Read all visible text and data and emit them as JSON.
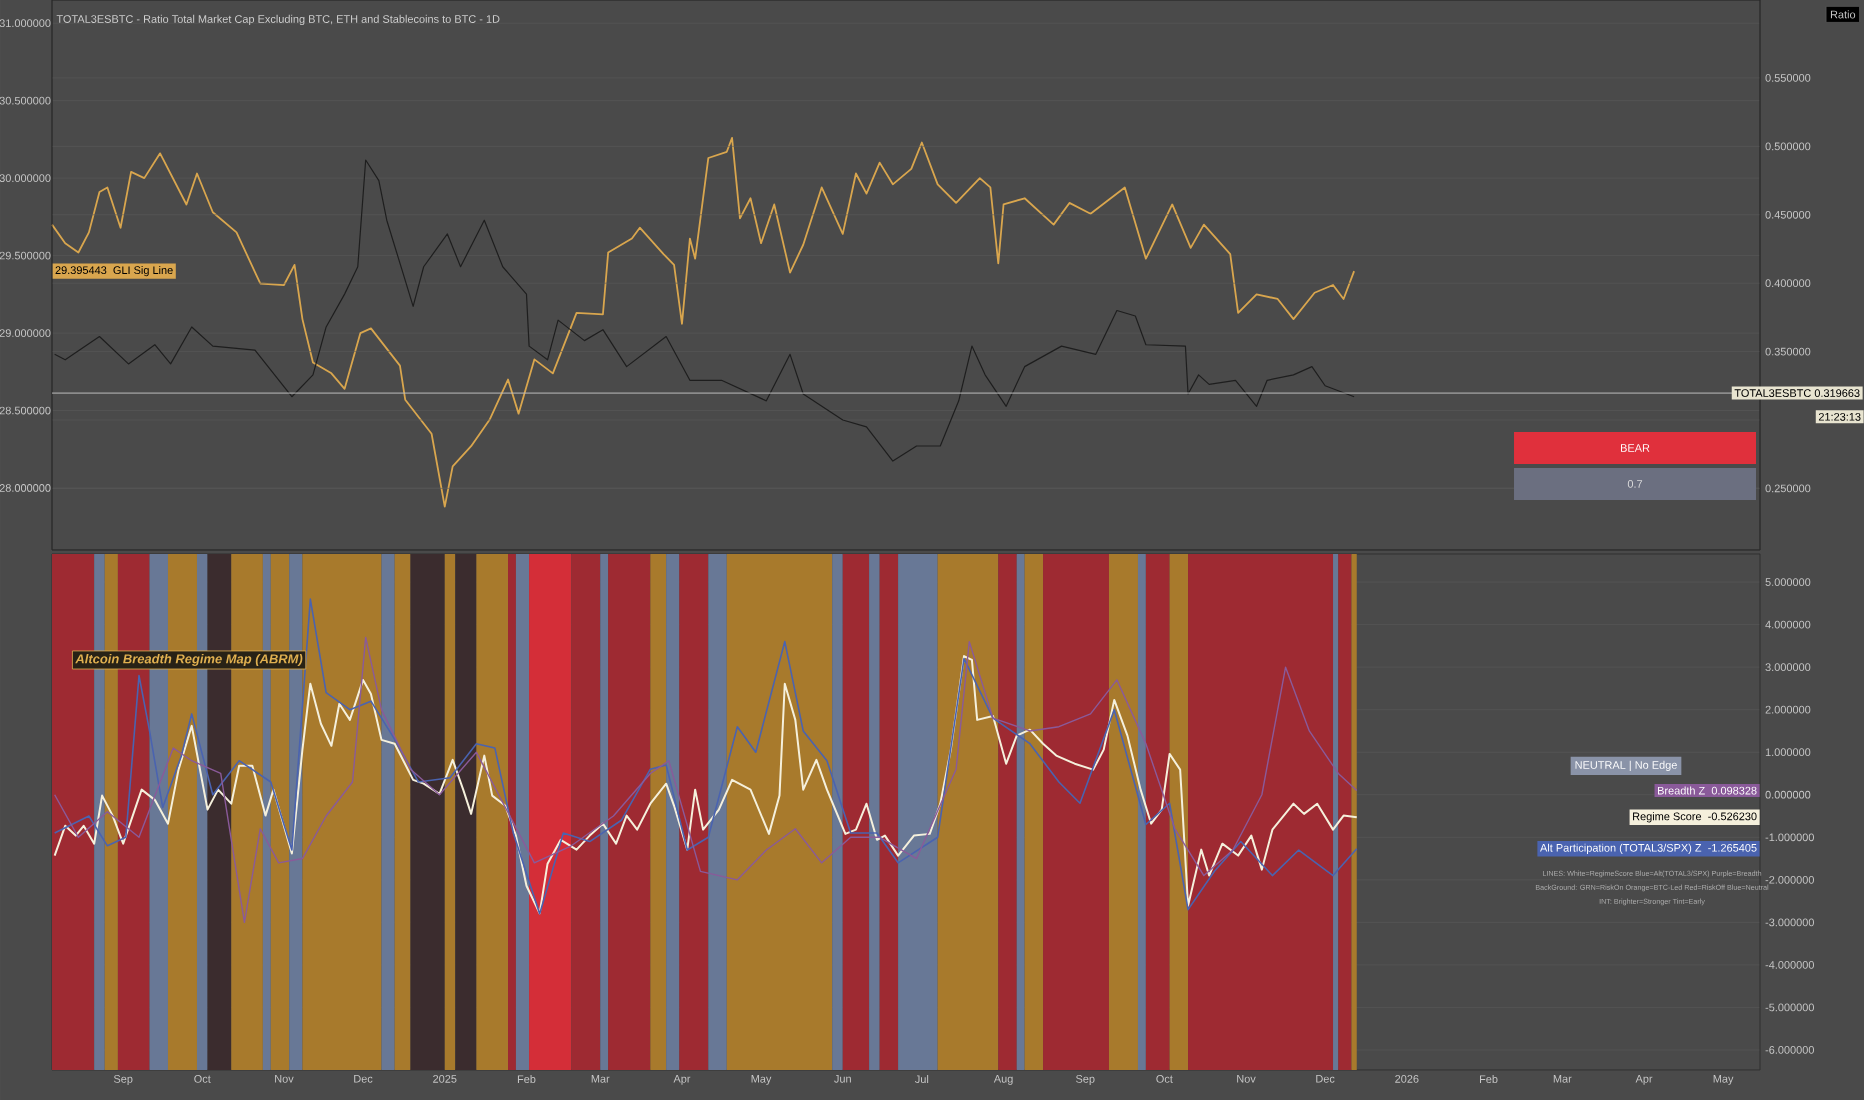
{
  "chart_data": [
    {
      "type": "line",
      "title": "TOTAL3ESBTC - Ratio Total Market Cap Excluding BTC, ETH and Stablecoins to BTC - 1D",
      "y2label": "Ratio",
      "xlim": [
        "2024-08-05",
        "2026-05-15"
      ],
      "ylim": [
        27.6,
        31.15
      ],
      "yticks": [
        {
          "value": 28,
          "label": "28.000000"
        },
        {
          "value": 28.5,
          "label": "28.500000"
        },
        {
          "value": 29,
          "label": "29.000000"
        },
        {
          "value": 29.5,
          "label": "29.500000"
        },
        {
          "value": 30,
          "label": "30.000000"
        },
        {
          "value": 30.5,
          "label": "30.500000"
        },
        {
          "value": 31,
          "label": "31.000000"
        }
      ],
      "y2lim": [
        0.205,
        0.607
      ],
      "y2ticks": [
        {
          "value": 0.25,
          "label": "0.250000"
        },
        {
          "value": 0.3,
          "label": null
        },
        {
          "value": 0.35,
          "label": "0.350000"
        },
        {
          "value": 0.4,
          "label": "0.400000"
        },
        {
          "value": 0.45,
          "label": "0.450000"
        },
        {
          "value": 0.5,
          "label": "0.500000"
        },
        {
          "value": 0.55,
          "label": "0.550000"
        }
      ],
      "tick_labels": "y",
      "grid": "y",
      "series": [
        {
          "name": "GLI Sig Line",
          "color": "#d9a64e",
          "x": [
            "2024-08-05",
            "2024-08-10",
            "2024-08-15",
            "2024-08-19",
            "2024-08-23",
            "2024-08-26",
            "2024-08-31",
            "2024-09-04",
            "2024-09-09",
            "2024-09-15",
            "2024-09-25",
            "2024-09-29",
            "2024-10-05",
            "2024-10-14",
            "2024-10-23",
            "2024-11-01",
            "2024-11-05",
            "2024-11-08",
            "2024-11-12",
            "2024-11-19",
            "2024-11-24",
            "2024-11-30",
            "2024-12-04",
            "2024-12-15",
            "2024-12-17",
            "2024-12-27",
            "2025-01-01",
            "2025-01-04",
            "2025-01-11",
            "2025-01-18",
            "2025-01-25",
            "2025-01-29",
            "2025-02-04",
            "2025-02-11",
            "2025-02-20",
            "2025-03-02",
            "2025-03-04",
            "2025-03-13",
            "2025-03-16",
            "2025-03-25",
            "2025-03-29",
            "2025-04-01",
            "2025-04-04",
            "2025-04-06",
            "2025-04-11",
            "2025-04-18",
            "2025-04-20",
            "2025-04-23",
            "2025-04-27",
            "2025-05-01",
            "2025-05-06",
            "2025-05-12",
            "2025-05-17",
            "2025-05-24",
            "2025-06-01",
            "2025-06-06",
            "2025-06-10",
            "2025-06-15",
            "2025-06-20",
            "2025-06-27",
            "2025-07-01",
            "2025-07-07",
            "2025-07-14",
            "2025-07-23",
            "2025-07-27",
            "2025-07-30",
            "2025-08-01",
            "2025-08-09",
            "2025-08-20",
            "2025-08-26",
            "2025-09-03",
            "2025-09-16",
            "2025-09-24",
            "2025-10-04",
            "2025-10-11",
            "2025-10-16",
            "2025-10-26",
            "2025-10-29",
            "2025-11-05",
            "2025-11-13",
            "2025-11-19",
            "2025-11-27",
            "2025-12-04",
            "2025-12-08",
            "2025-12-12"
          ],
          "values": [
            29.7,
            29.58,
            29.52,
            29.65,
            29.91,
            29.94,
            29.68,
            30.04,
            30.0,
            30.16,
            29.83,
            30.03,
            29.78,
            29.65,
            29.32,
            29.31,
            29.44,
            29.09,
            28.81,
            28.74,
            28.64,
            29.0,
            29.03,
            28.79,
            28.57,
            28.35,
            27.88,
            28.14,
            28.27,
            28.44,
            28.7,
            28.48,
            28.83,
            28.74,
            29.13,
            29.12,
            29.52,
            29.61,
            29.68,
            29.51,
            29.44,
            29.06,
            29.61,
            29.48,
            30.13,
            30.17,
            30.26,
            29.74,
            29.87,
            29.58,
            29.83,
            29.39,
            29.57,
            29.94,
            29.64,
            30.03,
            29.9,
            30.1,
            29.96,
            30.06,
            30.23,
            29.96,
            29.84,
            30.0,
            29.94,
            29.45,
            29.83,
            29.87,
            29.7,
            29.84,
            29.77,
            29.94,
            29.48,
            29.83,
            29.55,
            29.7,
            29.51,
            29.13,
            29.25,
            29.22,
            29.09,
            29.26,
            29.31,
            29.22,
            29.4
          ]
        },
        {
          "color": "#1e1e1e",
          "axis": "y2",
          "x": [
            "2024-08-06",
            "2024-08-10",
            "2024-08-23",
            "2024-09-03",
            "2024-09-13",
            "2024-09-19",
            "2024-09-27",
            "2024-10-05",
            "2024-10-21",
            "2024-11-04",
            "2024-11-12",
            "2024-11-17",
            "2024-11-24",
            "2024-11-29",
            "2024-12-02",
            "2024-12-07",
            "2024-12-10",
            "2024-12-17",
            "2024-12-20",
            "2024-12-24",
            "2025-01-02",
            "2025-01-07",
            "2025-01-16",
            "2025-01-23",
            "2025-02-01",
            "2025-02-02",
            "2025-02-09",
            "2025-02-13",
            "2025-02-23",
            "2025-03-02",
            "2025-03-11",
            "2025-03-26",
            "2025-04-04",
            "2025-04-16",
            "2025-05-03",
            "2025-05-12",
            "2025-05-17",
            "2025-06-01",
            "2025-06-10",
            "2025-06-20",
            "2025-06-29",
            "2025-07-08",
            "2025-07-15",
            "2025-07-20",
            "2025-07-25",
            "2025-08-02",
            "2025-08-09",
            "2025-08-23",
            "2025-09-05",
            "2025-09-13",
            "2025-09-20",
            "2025-09-24",
            "2025-10-09",
            "2025-10-10",
            "2025-10-14",
            "2025-10-18",
            "2025-10-28",
            "2025-11-05",
            "2025-11-09",
            "2025-11-19",
            "2025-11-26",
            "2025-12-01",
            "2025-12-12"
          ],
          "values": [
            0.348,
            0.344,
            0.361,
            0.341,
            0.355,
            0.341,
            0.368,
            0.354,
            0.351,
            0.317,
            0.333,
            0.368,
            0.392,
            0.412,
            0.49,
            0.475,
            0.446,
            0.402,
            0.383,
            0.412,
            0.436,
            0.412,
            0.446,
            0.412,
            0.392,
            0.354,
            0.344,
            0.373,
            0.358,
            0.366,
            0.339,
            0.361,
            0.329,
            0.329,
            0.314,
            0.348,
            0.319,
            0.3,
            0.295,
            0.27,
            0.281,
            0.281,
            0.314,
            0.354,
            0.333,
            0.31,
            0.339,
            0.354,
            0.348,
            0.38,
            0.376,
            0.355,
            0.354,
            0.319,
            0.333,
            0.326,
            0.329,
            0.31,
            0.329,
            0.333,
            0.339,
            0.325,
            0.317
          ]
        }
      ],
      "ref_lines": [
        {
          "axis": "y2",
          "value": 0.319663,
          "label": "TOTAL3ESBTC 0.319663",
          "color": "#bdbdbd"
        }
      ],
      "annotations": [
        "29.395443",
        "21:23:13",
        "BEAR",
        "0.7"
      ]
    },
    {
      "type": "line",
      "title": "Altcoin Breadth Regime Map (ABRM)",
      "xlim": [
        "2024-08-05",
        "2026-05-15"
      ],
      "xticks": [
        {
          "value": "2024-09-01",
          "label": "Sep"
        },
        {
          "value": "2024-10-01",
          "label": "Oct"
        },
        {
          "value": "2024-11-01",
          "label": "Nov"
        },
        {
          "value": "2024-12-01",
          "label": "Dec"
        },
        {
          "value": "2025-01-01",
          "label": "2025"
        },
        {
          "value": "2025-02-01",
          "label": "Feb"
        },
        {
          "value": "2025-03-01",
          "label": "Mar"
        },
        {
          "value": "2025-04-01",
          "label": "Apr"
        },
        {
          "value": "2025-05-01",
          "label": "May"
        },
        {
          "value": "2025-06-01",
          "label": "Jun"
        },
        {
          "value": "2025-07-01",
          "label": "Jul"
        },
        {
          "value": "2025-08-01",
          "label": "Aug"
        },
        {
          "value": "2025-09-01",
          "label": "Sep"
        },
        {
          "value": "2025-10-01",
          "label": "Oct"
        },
        {
          "value": "2025-11-01",
          "label": "Nov"
        },
        {
          "value": "2025-12-01",
          "label": "Dec"
        },
        {
          "value": "2026-01-01",
          "label": "2026"
        },
        {
          "value": "2026-02-01",
          "label": "Feb"
        },
        {
          "value": "2026-03-01",
          "label": "Mar"
        },
        {
          "value": "2026-04-01",
          "label": "Apr"
        },
        {
          "value": "2026-05-01",
          "label": "May"
        }
      ],
      "ylim": [
        -6.47,
        5.66
      ],
      "yticks": [
        {
          "value": -6,
          "label": "-6.000000"
        },
        {
          "value": -5,
          "label": "-5.000000"
        },
        {
          "value": -4,
          "label": "-4.000000"
        },
        {
          "value": -3,
          "label": "-3.000000"
        },
        {
          "value": -2,
          "label": "-2.000000"
        },
        {
          "value": -1,
          "label": "-1.000000"
        },
        {
          "value": 0,
          "label": "0.000000"
        },
        {
          "value": 1,
          "label": "1.000000"
        },
        {
          "value": 2,
          "label": "2.000000"
        },
        {
          "value": 3,
          "label": "3.000000"
        },
        {
          "value": 4,
          "label": "4.000000"
        },
        {
          "value": 5,
          "label": "5.000000"
        }
      ],
      "grid": "y",
      "series": [
        {
          "name": "Regime Score",
          "color": "#f5f0dc",
          "x": [
            "2024-08-06",
            "2024-08-10",
            "2024-08-14",
            "2024-08-17",
            "2024-08-21",
            "2024-08-24",
            "2024-08-28",
            "2024-09-01",
            "2024-09-08",
            "2024-09-13",
            "2024-09-18",
            "2024-09-22",
            "2024-09-27",
            "2024-10-03",
            "2024-10-07",
            "2024-10-12",
            "2024-10-15",
            "2024-10-20",
            "2024-10-25",
            "2024-10-28",
            "2024-11-04",
            "2024-11-08",
            "2024-11-11",
            "2024-11-15",
            "2024-11-19",
            "2024-11-22",
            "2024-11-26",
            "2024-12-01",
            "2024-12-04",
            "2024-12-08",
            "2024-12-13",
            "2024-12-20",
            "2024-12-24",
            "2024-12-30",
            "2025-01-04",
            "2025-01-08",
            "2025-01-11",
            "2025-01-16",
            "2025-01-19",
            "2025-01-24",
            "2025-01-28",
            "2025-02-01",
            "2025-02-06",
            "2025-02-09",
            "2025-02-14",
            "2025-02-20",
            "2025-02-25",
            "2025-03-02",
            "2025-03-07",
            "2025-03-11",
            "2025-03-15",
            "2025-03-20",
            "2025-03-26",
            "2025-03-29",
            "2025-04-03",
            "2025-04-06",
            "2025-04-09",
            "2025-04-15",
            "2025-04-20",
            "2025-04-27",
            "2025-05-04",
            "2025-05-08",
            "2025-05-10",
            "2025-05-14",
            "2025-05-17",
            "2025-05-22",
            "2025-05-26",
            "2025-06-02",
            "2025-06-06",
            "2025-06-10",
            "2025-06-14",
            "2025-06-17",
            "2025-06-22",
            "2025-06-28",
            "2025-07-04",
            "2025-07-08",
            "2025-07-12",
            "2025-07-17",
            "2025-07-20",
            "2025-07-22",
            "2025-07-28",
            "2025-08-02",
            "2025-08-06",
            "2025-08-11",
            "2025-08-16",
            "2025-08-21",
            "2025-08-28",
            "2025-09-04",
            "2025-09-08",
            "2025-09-12",
            "2025-09-17",
            "2025-09-22",
            "2025-09-26",
            "2025-09-30",
            "2025-10-03",
            "2025-10-07",
            "2025-10-10",
            "2025-10-15",
            "2025-10-18",
            "2025-10-23",
            "2025-10-29",
            "2025-11-03",
            "2025-11-07",
            "2025-11-11",
            "2025-11-19",
            "2025-11-23",
            "2025-11-28",
            "2025-12-04",
            "2025-12-08",
            "2025-12-13"
          ],
          "values": [
            -1.43,
            -0.73,
            -0.96,
            -0.73,
            -1.15,
            -0.02,
            -0.49,
            -1.15,
            0.12,
            -0.12,
            -0.68,
            0.59,
            1.62,
            -0.35,
            0.12,
            -0.21,
            0.68,
            0.68,
            -0.49,
            0.12,
            -1.38,
            1.06,
            2.61,
            1.67,
            1.15,
            2.14,
            1.76,
            2.7,
            2.37,
            1.29,
            1.2,
            0.35,
            0.26,
            0.02,
            0.82,
            0.12,
            -0.45,
            0.92,
            -0.02,
            -0.26,
            -0.96,
            -2.14,
            -2.79,
            -1.62,
            -1.06,
            -1.29,
            -0.96,
            -0.68,
            -1.15,
            -0.49,
            -0.82,
            -0.21,
            0.26,
            -0.26,
            -1.29,
            0.12,
            -0.82,
            -0.35,
            0.35,
            0.12,
            -0.92,
            -0.02,
            2.61,
            1.76,
            0.12,
            0.82,
            0.12,
            -0.92,
            -0.82,
            -0.21,
            -1.06,
            -0.96,
            -1.43,
            -0.96,
            -0.92,
            -0.21,
            1.06,
            3.26,
            3.17,
            1.76,
            1.85,
            0.73,
            1.39,
            1.53,
            1.2,
            0.92,
            0.73,
            0.59,
            1.06,
            2.23,
            1.39,
            0.12,
            -0.68,
            -0.35,
            0.96,
            0.59,
            -2.61,
            -1.29,
            -1.9,
            -1.15,
            -1.43,
            -0.96,
            -1.76,
            -0.82,
            -0.21,
            -0.45,
            -0.21,
            -0.82,
            -0.49,
            -0.53
          ]
        },
        {
          "name": "Alt Participation (TOTAL3/SPX) Z",
          "color": "#4a63b0",
          "x": [
            "2024-08-06",
            "2024-08-19",
            "2024-08-26",
            "2024-09-02",
            "2024-09-07",
            "2024-09-11",
            "2024-09-16",
            "2024-09-23",
            "2024-09-27",
            "2024-10-05",
            "2024-10-15",
            "2024-10-27",
            "2024-11-04",
            "2024-11-11",
            "2024-11-17",
            "2024-11-26",
            "2024-12-04",
            "2024-12-13",
            "2024-12-22",
            "2025-01-03",
            "2025-01-13",
            "2025-01-20",
            "2025-01-27",
            "2025-02-06",
            "2025-02-15",
            "2025-02-25",
            "2025-03-09",
            "2025-03-20",
            "2025-03-26",
            "2025-04-03",
            "2025-04-11",
            "2025-04-22",
            "2025-04-29",
            "2025-05-10",
            "2025-05-17",
            "2025-05-26",
            "2025-06-04",
            "2025-06-14",
            "2025-06-22",
            "2025-07-07",
            "2025-07-17",
            "2025-07-28",
            "2025-08-11",
            "2025-08-22",
            "2025-08-30",
            "2025-09-12",
            "2025-09-24",
            "2025-10-03",
            "2025-10-10",
            "2025-10-20",
            "2025-10-30",
            "2025-11-11",
            "2025-11-21",
            "2025-12-04",
            "2025-12-13"
          ],
          "values": [
            -0.9,
            -0.5,
            -1.2,
            -1.0,
            2.8,
            1.5,
            -0.3,
            0.9,
            1.9,
            0.0,
            0.8,
            0.3,
            -1.3,
            4.6,
            2.4,
            2.0,
            2.2,
            1.3,
            0.3,
            0.4,
            1.2,
            1.1,
            -0.9,
            -2.8,
            -0.9,
            -1.1,
            -0.6,
            0.6,
            0.7,
            -1.3,
            -1.0,
            1.6,
            1.0,
            3.6,
            1.5,
            0.8,
            -0.9,
            -0.9,
            -1.6,
            -1.0,
            3.2,
            1.8,
            1.2,
            0.3,
            -0.2,
            2.0,
            -0.7,
            -0.2,
            -2.7,
            -1.8,
            -1.1,
            -1.9,
            -1.3,
            -1.9,
            -1.27
          ]
        },
        {
          "name": "Breadth Z",
          "color": "#8a5a9a",
          "x": [
            "2024-08-06",
            "2024-08-15",
            "2024-08-26",
            "2024-09-07",
            "2024-09-20",
            "2024-09-27",
            "2024-10-08",
            "2024-10-17",
            "2024-10-23",
            "2024-10-30",
            "2024-11-08",
            "2024-11-17",
            "2024-11-27",
            "2024-12-02",
            "2024-12-08",
            "2024-12-19",
            "2024-12-30",
            "2025-01-13",
            "2025-01-24",
            "2025-02-04",
            "2025-02-18",
            "2025-03-06",
            "2025-03-20",
            "2025-03-27",
            "2025-04-08",
            "2025-04-22",
            "2025-05-03",
            "2025-05-14",
            "2025-05-24",
            "2025-06-04",
            "2025-06-15",
            "2025-06-29",
            "2025-07-14",
            "2025-07-19",
            "2025-07-28",
            "2025-08-11",
            "2025-08-22",
            "2025-09-03",
            "2025-09-13",
            "2025-09-24",
            "2025-10-05",
            "2025-10-16",
            "2025-10-27",
            "2025-11-07",
            "2025-11-16",
            "2025-11-25",
            "2025-12-06",
            "2025-12-13"
          ],
          "values": [
            0.0,
            -1.0,
            -0.4,
            -1.0,
            1.1,
            0.8,
            0.5,
            -3.0,
            -0.8,
            -1.6,
            -1.5,
            -0.5,
            0.3,
            3.7,
            2.0,
            0.6,
            0.0,
            1.0,
            -0.3,
            -1.6,
            -1.2,
            -0.5,
            0.5,
            0.8,
            -1.8,
            -2.0,
            -1.3,
            -0.8,
            -1.6,
            -1.0,
            -1.0,
            -1.5,
            0.6,
            3.6,
            1.8,
            1.5,
            1.6,
            1.9,
            2.7,
            1.2,
            -0.8,
            -1.9,
            -1.3,
            0.0,
            3.0,
            1.5,
            0.5,
            0.1
          ]
        }
      ],
      "bands": [
        {
          "axis": "x",
          "from": "2024-08-05",
          "to": "2024-08-21",
          "color": "#9e2a32"
        },
        {
          "axis": "x",
          "from": "2024-08-21",
          "to": "2024-08-25",
          "color": "#687896"
        },
        {
          "axis": "x",
          "from": "2024-08-25",
          "to": "2024-08-30",
          "color": "#a87a2c"
        },
        {
          "axis": "x",
          "from": "2024-08-30",
          "to": "2024-09-11",
          "color": "#9e2a32"
        },
        {
          "axis": "x",
          "from": "2024-09-11",
          "to": "2024-09-18",
          "color": "#687896"
        },
        {
          "axis": "x",
          "from": "2024-09-18",
          "to": "2024-09-29",
          "color": "#a87a2c"
        },
        {
          "axis": "x",
          "from": "2024-09-29",
          "to": "2024-10-03",
          "color": "#687896"
        },
        {
          "axis": "x",
          "from": "2024-10-03",
          "to": "2024-10-12",
          "color": "#3b2c2e"
        },
        {
          "axis": "x",
          "from": "2024-10-12",
          "to": "2024-10-24",
          "color": "#a87a2c"
        },
        {
          "axis": "x",
          "from": "2024-10-24",
          "to": "2024-10-27",
          "color": "#687896"
        },
        {
          "axis": "x",
          "from": "2024-10-27",
          "to": "2024-11-03",
          "color": "#a87a2c"
        },
        {
          "axis": "x",
          "from": "2024-11-03",
          "to": "2024-11-08",
          "color": "#687896"
        },
        {
          "axis": "x",
          "from": "2024-11-08",
          "to": "2024-12-08",
          "color": "#a87a2c"
        },
        {
          "axis": "x",
          "from": "2024-12-08",
          "to": "2024-12-13",
          "color": "#687896"
        },
        {
          "axis": "x",
          "from": "2024-12-13",
          "to": "2024-12-19",
          "color": "#a87a2c"
        },
        {
          "axis": "x",
          "from": "2024-12-19",
          "to": "2025-01-01",
          "color": "#3b2c2e"
        },
        {
          "axis": "x",
          "from": "2025-01-01",
          "to": "2025-01-05",
          "color": "#a87a2c"
        },
        {
          "axis": "x",
          "from": "2025-01-05",
          "to": "2025-01-13",
          "color": "#3b2c2e"
        },
        {
          "axis": "x",
          "from": "2025-01-13",
          "to": "2025-01-25",
          "color": "#a87a2c"
        },
        {
          "axis": "x",
          "from": "2025-01-25",
          "to": "2025-01-28",
          "color": "#9e2a32"
        },
        {
          "axis": "x",
          "from": "2025-01-28",
          "to": "2025-02-02",
          "color": "#687896"
        },
        {
          "axis": "x",
          "from": "2025-02-02",
          "to": "2025-02-18",
          "color": "#d42e38"
        },
        {
          "axis": "x",
          "from": "2025-02-18",
          "to": "2025-03-01",
          "color": "#9e2a32"
        },
        {
          "axis": "x",
          "from": "2025-03-01",
          "to": "2025-03-04",
          "color": "#687896"
        },
        {
          "axis": "x",
          "from": "2025-03-04",
          "to": "2025-03-20",
          "color": "#9e2a32"
        },
        {
          "axis": "x",
          "from": "2025-03-20",
          "to": "2025-03-26",
          "color": "#a87a2c"
        },
        {
          "axis": "x",
          "from": "2025-03-26",
          "to": "2025-03-31",
          "color": "#687896"
        },
        {
          "axis": "x",
          "from": "2025-03-31",
          "to": "2025-04-11",
          "color": "#9e2a32"
        },
        {
          "axis": "x",
          "from": "2025-04-11",
          "to": "2025-04-18",
          "color": "#687896"
        },
        {
          "axis": "x",
          "from": "2025-04-18",
          "to": "2025-05-28",
          "color": "#a87a2c"
        },
        {
          "axis": "x",
          "from": "2025-05-28",
          "to": "2025-06-01",
          "color": "#687896"
        },
        {
          "axis": "x",
          "from": "2025-06-01",
          "to": "2025-06-11",
          "color": "#9e2a32"
        },
        {
          "axis": "x",
          "from": "2025-06-11",
          "to": "2025-06-15",
          "color": "#687896"
        },
        {
          "axis": "x",
          "from": "2025-06-15",
          "to": "2025-06-22",
          "color": "#9e2a32"
        },
        {
          "axis": "x",
          "from": "2025-06-22",
          "to": "2025-07-07",
          "color": "#687896"
        },
        {
          "axis": "x",
          "from": "2025-07-07",
          "to": "2025-07-30",
          "color": "#a87a2c"
        },
        {
          "axis": "x",
          "from": "2025-07-30",
          "to": "2025-08-06",
          "color": "#9e2a32"
        },
        {
          "axis": "x",
          "from": "2025-08-06",
          "to": "2025-08-09",
          "color": "#687896"
        },
        {
          "axis": "x",
          "from": "2025-08-09",
          "to": "2025-08-16",
          "color": "#a87a2c"
        },
        {
          "axis": "x",
          "from": "2025-08-16",
          "to": "2025-09-10",
          "color": "#9e2a32"
        },
        {
          "axis": "x",
          "from": "2025-09-10",
          "to": "2025-09-21",
          "color": "#a87a2c"
        },
        {
          "axis": "x",
          "from": "2025-09-21",
          "to": "2025-09-24",
          "color": "#687896"
        },
        {
          "axis": "x",
          "from": "2025-09-24",
          "to": "2025-10-03",
          "color": "#9e2a32"
        },
        {
          "axis": "x",
          "from": "2025-10-03",
          "to": "2025-10-10",
          "color": "#a87a2c"
        },
        {
          "axis": "x",
          "from": "2025-10-10",
          "to": "2025-12-04",
          "color": "#9e2a32"
        },
        {
          "axis": "x",
          "from": "2025-12-04",
          "to": "2025-12-06",
          "color": "#687896"
        },
        {
          "axis": "x",
          "from": "2025-12-06",
          "to": "2025-12-11",
          "color": "#9e2a32"
        },
        {
          "axis": "x",
          "from": "2025-12-11",
          "to": "2025-12-13",
          "color": "#a87a2c"
        }
      ],
      "annotations": [
        "-0.526230",
        "-1.265405",
        "0.098328",
        "NEUTRAL | No Edge",
        "LINES: White=RegimeScore  Blue=Alt(TOTAL3/SPX)  Purple=Breadth",
        "BackGround: GRN=RiskOn  Orange=BTC-Led  Red=RiskOff  Blue=Neutral",
        "INT: Brighter=Stronger  Tint=Early"
      ]
    }
  ]
}
